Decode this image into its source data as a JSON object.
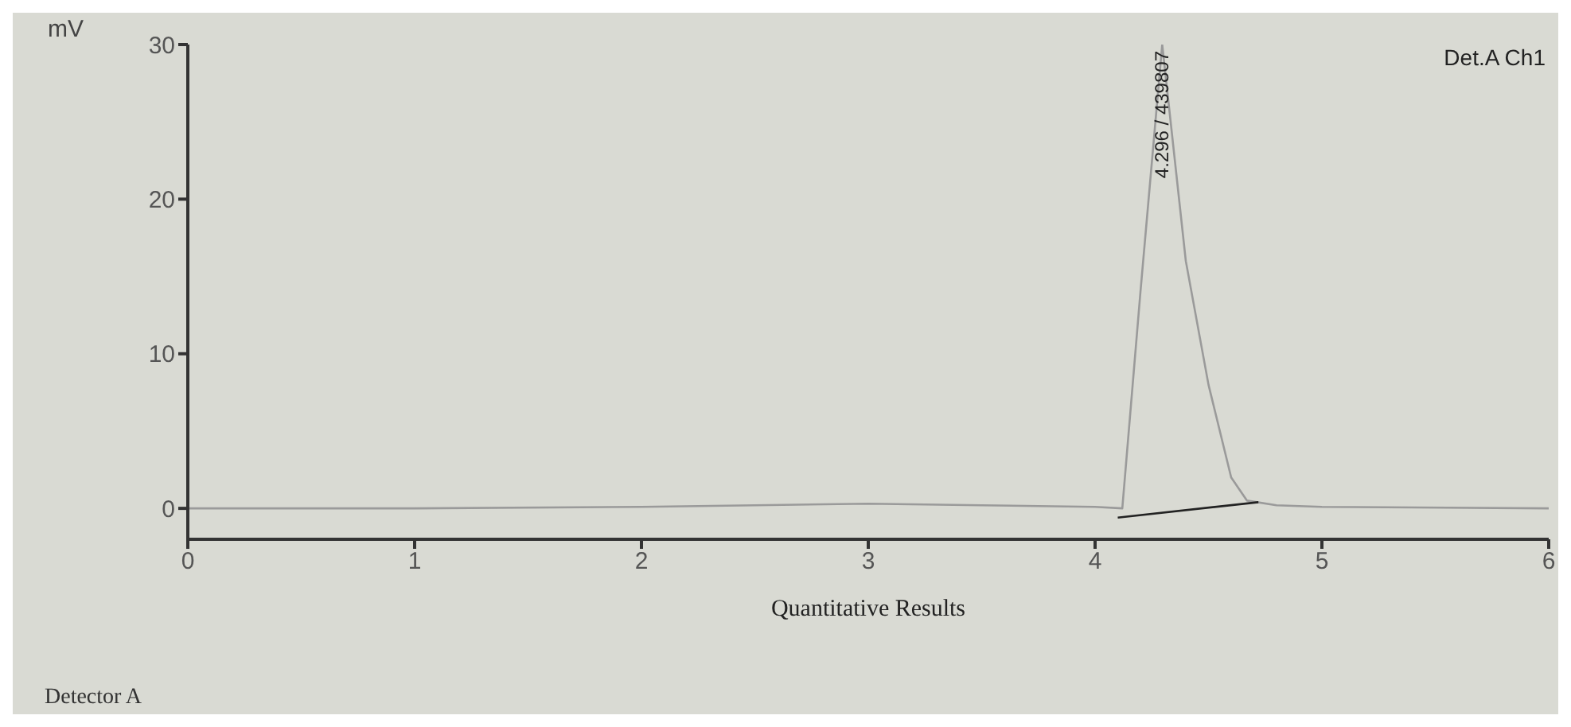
{
  "chart_data": {
    "type": "line",
    "xlabel": "Quantitative Results",
    "ylabel": "mV",
    "xlim": [
      0,
      6
    ],
    "xticks": [
      0,
      1,
      2,
      3,
      4,
      5,
      6
    ],
    "ylim": [
      -2,
      30
    ],
    "yticks": [
      0,
      10,
      20,
      30
    ],
    "grid": false,
    "legend": false,
    "marker": "none",
    "line_style": "solid",
    "series": [
      {
        "color": "#9a9a9a",
        "x": [
          0,
          1,
          2,
          2.5,
          3,
          3.5,
          4,
          4.12,
          4.2,
          4.296,
          4.4,
          4.5,
          4.6,
          4.67,
          4.8,
          5,
          6
        ],
        "values": [
          0,
          0,
          0.1,
          0.2,
          0.3,
          0.2,
          0.1,
          0,
          14,
          30,
          16,
          8,
          2,
          0.5,
          0.2,
          0.1,
          0
        ]
      },
      {
        "type": "line",
        "color": "#222222",
        "x": [
          4.1,
          4.72
        ],
        "values": [
          -0.6,
          0.4
        ]
      }
    ],
    "annotations": [
      {
        "text": "4.296 / 439807",
        "x": 4.296,
        "y": 30
      },
      "Det.A Ch1",
      "Detector A"
    ]
  }
}
